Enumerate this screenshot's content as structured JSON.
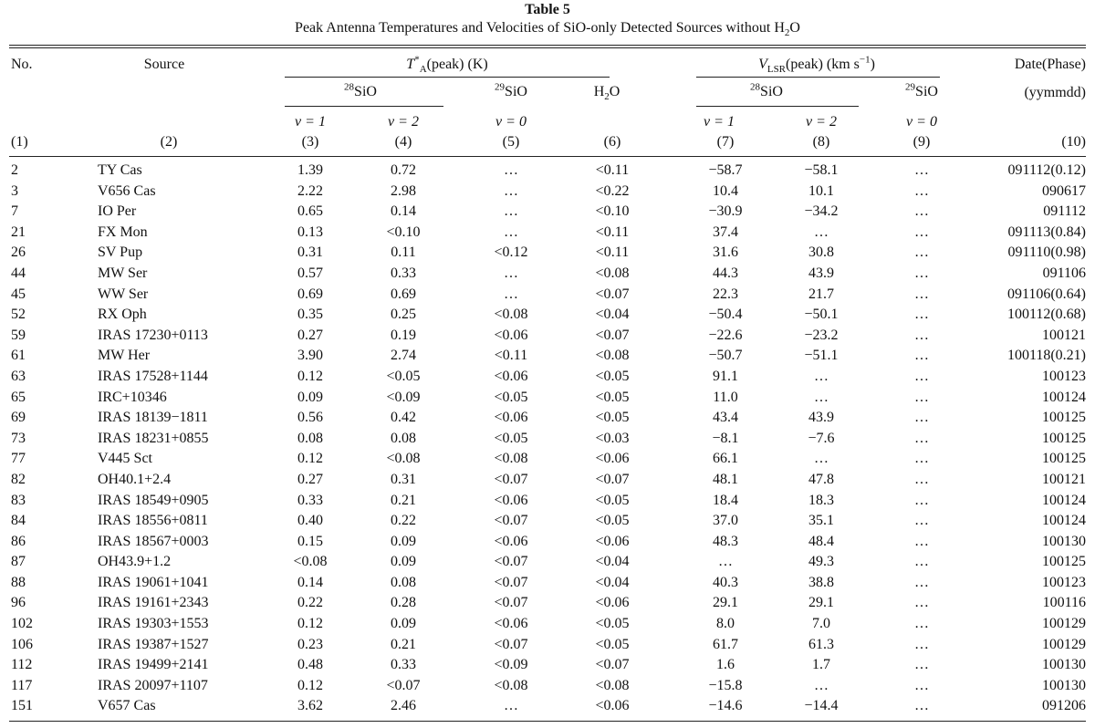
{
  "table": {
    "title": "Table 5",
    "caption_pre": "Peak Antenna Temperatures and Velocities of SiO-only Detected Sources without H",
    "caption_sub": "2",
    "caption_post": "O",
    "headers": {
      "no": "No.",
      "source": "Source",
      "ta_sym": "T",
      "ta_sup": "*",
      "ta_sub": "A",
      "ta_rest": "(peak) (K)",
      "v_sym": "V",
      "v_sub": "LSR",
      "v_rest_pre": "(peak) (km s",
      "v_rest_sup": "−1",
      "v_rest_post": ")",
      "date_line1": "Date(Phase)",
      "date_line2": "(yymmdd)",
      "sio28_sup": "28",
      "sio29_sup": "29",
      "sio_label": "SiO",
      "h2o_pre": "H",
      "h2o_sub": "2",
      "h2o_post": "O",
      "v1": "v = 1",
      "v2": "v = 2",
      "v0": "v = 0",
      "col_numbers": [
        "(1)",
        "(2)",
        "(3)",
        "(4)",
        "(5)",
        "(6)",
        "(7)",
        "(8)",
        "(9)",
        "(10)"
      ]
    },
    "rows": [
      [
        "2",
        "TY Cas",
        "1.39",
        "0.72",
        "…",
        "<0.11",
        "−58.7",
        "−58.1",
        "…",
        "091112(0.12)"
      ],
      [
        "3",
        "V656 Cas",
        "2.22",
        "2.98",
        "…",
        "<0.22",
        "10.4",
        "10.1",
        "…",
        "090617"
      ],
      [
        "7",
        "IO Per",
        "0.65",
        "0.14",
        "…",
        "<0.10",
        "−30.9",
        "−34.2",
        "…",
        "091112"
      ],
      [
        "21",
        "FX Mon",
        "0.13",
        "<0.10",
        "…",
        "<0.11",
        "37.4",
        "…",
        "…",
        "091113(0.84)"
      ],
      [
        "26",
        "SV Pup",
        "0.31",
        "0.11",
        "<0.12",
        "<0.11",
        "31.6",
        "30.8",
        "…",
        "091110(0.98)"
      ],
      [
        "44",
        "MW Ser",
        "0.57",
        "0.33",
        "…",
        "<0.08",
        "44.3",
        "43.9",
        "…",
        "091106"
      ],
      [
        "45",
        "WW Ser",
        "0.69",
        "0.69",
        "…",
        "<0.07",
        "22.3",
        "21.7",
        "…",
        "091106(0.64)"
      ],
      [
        "52",
        "RX Oph",
        "0.35",
        "0.25",
        "<0.08",
        "<0.04",
        "−50.4",
        "−50.1",
        "…",
        "100112(0.68)"
      ],
      [
        "59",
        "IRAS 17230+0113",
        "0.27",
        "0.19",
        "<0.06",
        "<0.07",
        "−22.6",
        "−23.2",
        "…",
        "100121"
      ],
      [
        "61",
        "MW Her",
        "3.90",
        "2.74",
        "<0.11",
        "<0.08",
        "−50.7",
        "−51.1",
        "…",
        "100118(0.21)"
      ],
      [
        "63",
        "IRAS 17528+1144",
        "0.12",
        "<0.05",
        "<0.06",
        "<0.05",
        "91.1",
        "…",
        "…",
        "100123"
      ],
      [
        "65",
        "IRC+10346",
        "0.09",
        "<0.09",
        "<0.05",
        "<0.05",
        "11.0",
        "…",
        "…",
        "100124"
      ],
      [
        "69",
        "IRAS 18139−1811",
        "0.56",
        "0.42",
        "<0.06",
        "<0.05",
        "43.4",
        "43.9",
        "…",
        "100125"
      ],
      [
        "73",
        "IRAS 18231+0855",
        "0.08",
        "0.08",
        "<0.05",
        "<0.03",
        "−8.1",
        "−7.6",
        "…",
        "100125"
      ],
      [
        "77",
        "V445 Sct",
        "0.12",
        "<0.08",
        "<0.08",
        "<0.06",
        "66.1",
        "…",
        "…",
        "100125"
      ],
      [
        "82",
        "OH40.1+2.4",
        "0.27",
        "0.31",
        "<0.07",
        "<0.07",
        "48.1",
        "47.8",
        "…",
        "100121"
      ],
      [
        "83",
        "IRAS 18549+0905",
        "0.33",
        "0.21",
        "<0.06",
        "<0.05",
        "18.4",
        "18.3",
        "…",
        "100124"
      ],
      [
        "84",
        "IRAS 18556+0811",
        "0.40",
        "0.22",
        "<0.07",
        "<0.05",
        "37.0",
        "35.1",
        "…",
        "100124"
      ],
      [
        "86",
        "IRAS 18567+0003",
        "0.15",
        "0.09",
        "<0.06",
        "<0.06",
        "48.3",
        "48.4",
        "…",
        "100130"
      ],
      [
        "87",
        "OH43.9+1.2",
        "<0.08",
        "0.09",
        "<0.07",
        "<0.04",
        "…",
        "49.3",
        "…",
        "100125"
      ],
      [
        "88",
        "IRAS 19061+1041",
        "0.14",
        "0.08",
        "<0.07",
        "<0.04",
        "40.3",
        "38.8",
        "…",
        "100123"
      ],
      [
        "96",
        "IRAS 19161+2343",
        "0.22",
        "0.28",
        "<0.07",
        "<0.06",
        "29.1",
        "29.1",
        "…",
        "100116"
      ],
      [
        "102",
        "IRAS 19303+1553",
        "0.12",
        "0.09",
        "<0.06",
        "<0.05",
        "8.0",
        "7.0",
        "…",
        "100129"
      ],
      [
        "106",
        "IRAS 19387+1527",
        "0.23",
        "0.21",
        "<0.07",
        "<0.05",
        "61.7",
        "61.3",
        "…",
        "100129"
      ],
      [
        "112",
        "IRAS 19499+2141",
        "0.48",
        "0.33",
        "<0.09",
        "<0.07",
        "1.6",
        "1.7",
        "…",
        "100130"
      ],
      [
        "117",
        "IRAS 20097+1107",
        "0.12",
        "<0.07",
        "<0.08",
        "<0.08",
        "−15.8",
        "…",
        "…",
        "100130"
      ],
      [
        "151",
        "V657 Cas",
        "3.62",
        "2.46",
        "…",
        "<0.06",
        "−14.6",
        "−14.4",
        "…",
        "091206"
      ]
    ]
  }
}
